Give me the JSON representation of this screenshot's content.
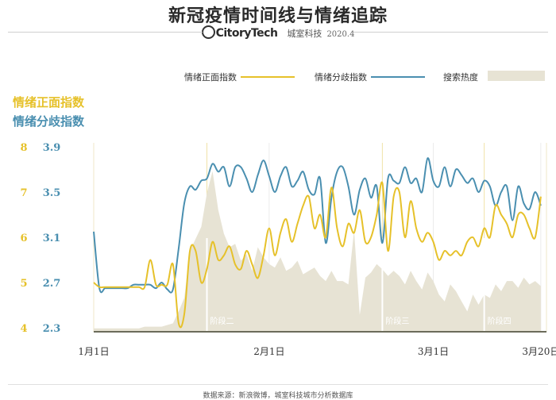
{
  "header": {
    "title": "新冠疫情时间线与情绪追踪",
    "brand": "CitoryTech",
    "org": "城室科技",
    "date": "2020.4"
  },
  "legend": {
    "positive": "情绪正面指数",
    "divergence": "情绪分歧指数",
    "search": "搜索热度"
  },
  "axis_titles": {
    "left": "情绪正面指数",
    "right": "情绪分歧指数"
  },
  "footer": {
    "source": "数据来源：新浪微博，城室科技城市分析数据库"
  },
  "colors": {
    "positive": "#e6c12a",
    "divergence": "#4a8fb0",
    "search": "#e7e3d4",
    "stage_line": "#ffffff",
    "grid": "#e3e3e3",
    "baseline": "#6b6b5a"
  },
  "chart_data": {
    "type": "line",
    "x_tick_labels": [
      {
        "label": "1月1日",
        "day": 1
      },
      {
        "label": "2月1日",
        "day": 32
      },
      {
        "label": "3月1日",
        "day": 61
      },
      {
        "label": "3月20日",
        "day": 80
      }
    ],
    "x_range": [
      "1月1日",
      "3月20日"
    ],
    "stages": [
      {
        "label": "阶段二",
        "day": 21
      },
      {
        "label": "阶段三",
        "day": 52
      },
      {
        "label": "阶段四",
        "day": 70
      }
    ],
    "y_left": {
      "label": "情绪正面指数",
      "ticks": [
        4,
        5,
        6,
        7,
        8
      ],
      "ylim": [
        4,
        8
      ]
    },
    "y_right": {
      "label": "情绪分歧指数",
      "ticks": [
        2.3,
        2.7,
        3.1,
        3.5,
        3.9
      ],
      "ylim": [
        2.3,
        3.9
      ]
    },
    "series": [
      {
        "name": "情绪正面指数",
        "axis": "left",
        "x": [
          1,
          2,
          3,
          4,
          5,
          6,
          7,
          8,
          9,
          10,
          11,
          12,
          13,
          14,
          15,
          16,
          17,
          18,
          19,
          20,
          21,
          22,
          23,
          24,
          25,
          26,
          27,
          28,
          29,
          30,
          31,
          32,
          33,
          34,
          35,
          36,
          37,
          38,
          39,
          40,
          41,
          42,
          43,
          44,
          45,
          46,
          47,
          48,
          49,
          50,
          51,
          52,
          53,
          54,
          55,
          56,
          57,
          58,
          59,
          60,
          61,
          62,
          63,
          64,
          65,
          66,
          67,
          68,
          69,
          70,
          71,
          72,
          73,
          74,
          75,
          76,
          77,
          78,
          79,
          80
        ],
        "values": [
          5.0,
          4.9,
          4.9,
          4.9,
          4.9,
          4.9,
          4.9,
          4.9,
          4.9,
          4.9,
          5.5,
          4.95,
          4.95,
          4.95,
          5.4,
          4.1,
          4.3,
          5.7,
          5.7,
          5.0,
          5.3,
          5.9,
          5.5,
          5.6,
          5.8,
          5.4,
          5.3,
          5.7,
          5.4,
          5.1,
          5.6,
          6.2,
          5.6,
          6.1,
          6.4,
          5.9,
          6.3,
          6.7,
          6.9,
          6.2,
          6.5,
          6.0,
          7.1,
          6.2,
          5.8,
          6.3,
          6.1,
          6.6,
          5.9,
          6.0,
          6.5,
          7.2,
          5.7,
          6.9,
          7.0,
          6.0,
          6.8,
          6.2,
          5.9,
          6.1,
          5.9,
          5.5,
          5.7,
          5.6,
          5.7,
          5.6,
          5.9,
          6.0,
          5.8,
          6.2,
          6.0,
          6.7,
          6.5,
          6.3,
          6.0,
          6.5,
          6.5,
          6.2,
          6.0,
          6.9
        ]
      },
      {
        "name": "情绪分歧指数",
        "axis": "right",
        "x": [
          1,
          2,
          3,
          4,
          5,
          6,
          7,
          8,
          9,
          10,
          11,
          12,
          13,
          14,
          15,
          16,
          17,
          18,
          19,
          20,
          21,
          22,
          23,
          24,
          25,
          26,
          27,
          28,
          29,
          30,
          31,
          32,
          33,
          34,
          35,
          36,
          37,
          38,
          39,
          40,
          41,
          42,
          43,
          44,
          45,
          46,
          47,
          48,
          49,
          50,
          51,
          52,
          53,
          54,
          55,
          56,
          57,
          58,
          59,
          60,
          61,
          62,
          63,
          64,
          65,
          66,
          67,
          68,
          69,
          70,
          71,
          72,
          73,
          74,
          75,
          76,
          77,
          78,
          79,
          80
        ],
        "values": [
          3.15,
          2.65,
          2.65,
          2.65,
          2.65,
          2.65,
          2.65,
          2.68,
          2.68,
          2.68,
          2.68,
          2.65,
          2.7,
          2.64,
          2.64,
          3.0,
          3.4,
          3.55,
          3.52,
          3.6,
          3.62,
          3.75,
          3.68,
          3.72,
          3.55,
          3.72,
          3.72,
          3.62,
          3.5,
          3.65,
          3.78,
          3.64,
          3.5,
          3.64,
          3.72,
          3.55,
          3.6,
          3.68,
          3.52,
          3.48,
          3.62,
          3.05,
          3.45,
          3.68,
          3.72,
          3.55,
          3.3,
          3.52,
          3.62,
          3.45,
          3.55,
          3.05,
          3.62,
          3.6,
          3.58,
          3.72,
          3.58,
          3.62,
          3.5,
          3.8,
          3.6,
          3.55,
          3.72,
          3.55,
          3.7,
          3.65,
          3.58,
          3.62,
          3.5,
          3.6,
          3.55,
          3.38,
          3.5,
          3.55,
          3.25,
          3.55,
          3.4,
          3.35,
          3.5,
          3.38
        ]
      },
      {
        "name": "搜索热度",
        "type": "area",
        "unit": "relative",
        "x": [
          1,
          2,
          3,
          4,
          5,
          6,
          7,
          8,
          9,
          10,
          11,
          12,
          13,
          14,
          15,
          16,
          17,
          18,
          19,
          20,
          21,
          22,
          23,
          24,
          25,
          26,
          27,
          28,
          29,
          30,
          31,
          32,
          33,
          34,
          35,
          36,
          37,
          38,
          39,
          40,
          41,
          42,
          43,
          44,
          45,
          46,
          47,
          48,
          49,
          50,
          51,
          52,
          53,
          54,
          55,
          56,
          57,
          58,
          59,
          60,
          61,
          62,
          63,
          64,
          65,
          66,
          67,
          68,
          69,
          70,
          71,
          72,
          73,
          74,
          75,
          76,
          77,
          78,
          79,
          80
        ],
        "values": [
          0.02,
          0.02,
          0.02,
          0.02,
          0.02,
          0.02,
          0.02,
          0.02,
          0.02,
          0.03,
          0.03,
          0.03,
          0.03,
          0.04,
          0.05,
          0.12,
          0.2,
          0.48,
          0.55,
          0.62,
          0.82,
          0.95,
          0.72,
          0.58,
          0.5,
          0.52,
          0.42,
          0.46,
          0.36,
          0.5,
          0.44,
          0.4,
          0.38,
          0.44,
          0.36,
          0.38,
          0.42,
          0.34,
          0.36,
          0.38,
          0.33,
          0.3,
          0.36,
          0.3,
          0.3,
          0.28,
          0.6,
          0.1,
          0.32,
          0.35,
          0.4,
          0.37,
          0.33,
          0.36,
          0.33,
          0.28,
          0.36,
          0.3,
          0.25,
          0.35,
          0.3,
          0.22,
          0.18,
          0.28,
          0.24,
          0.18,
          0.12,
          0.22,
          0.16,
          0.22,
          0.2,
          0.28,
          0.24,
          0.3,
          0.3,
          0.26,
          0.32,
          0.28,
          0.3,
          0.27
        ]
      }
    ]
  }
}
